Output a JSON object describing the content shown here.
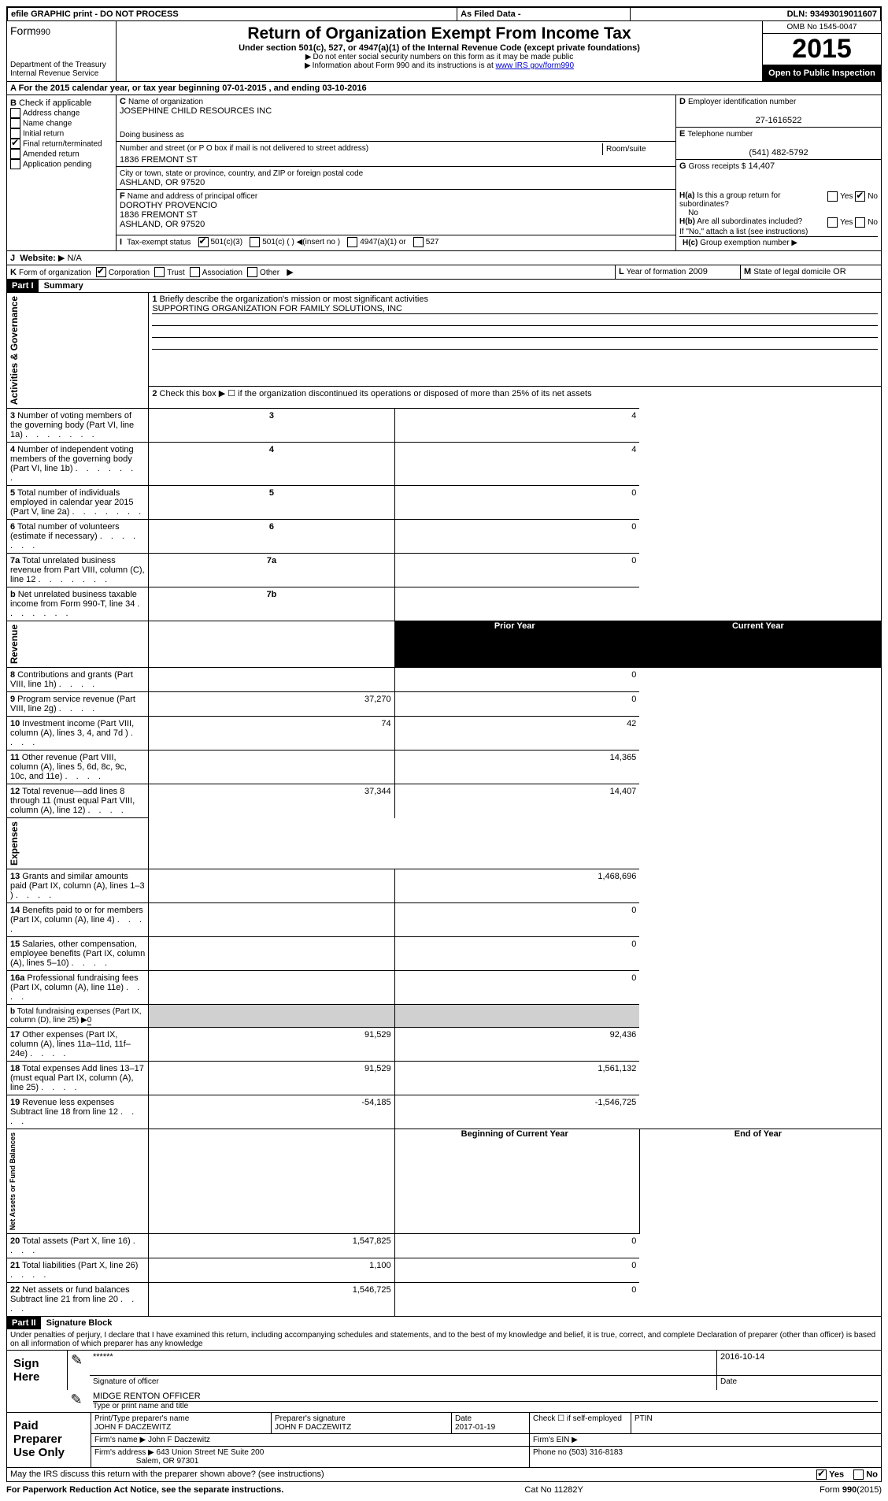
{
  "topbar": {
    "efile": "efile GRAPHIC print - DO NOT PROCESS",
    "asfiled": "As Filed Data -",
    "dln_label": "DLN:",
    "dln": "93493019011607"
  },
  "header": {
    "form_label": "Form",
    "form_no": "990",
    "dept": "Department of the Treasury",
    "irs": "Internal Revenue Service",
    "title": "Return of Organization Exempt From Income Tax",
    "subtitle": "Under section 501(c), 527, or 4947(a)(1) of the Internal Revenue Code (except private foundations)",
    "note1": "Do not enter social security numbers on this form as it may be made public",
    "note2": "Information about Form 990 and its instructions is at ",
    "note2_link": "www IRS gov/form990",
    "omb": "OMB No 1545-0047",
    "year": "2015",
    "inspect": "Open to Public Inspection"
  },
  "A": {
    "text": "For the 2015 calendar year, or tax year beginning 07-01-2015   , and ending 03-10-2016"
  },
  "B": {
    "label": "Check if applicable",
    "items": [
      {
        "label": "Address change",
        "checked": false
      },
      {
        "label": "Name change",
        "checked": false
      },
      {
        "label": "Initial return",
        "checked": false
      },
      {
        "label": "Final return/terminated",
        "checked": true
      },
      {
        "label": "Amended return",
        "checked": false
      },
      {
        "label": "Application pending",
        "checked": false
      }
    ]
  },
  "C": {
    "name_label": "Name of organization",
    "name": "JOSEPHINE CHILD RESOURCES INC",
    "dba_label": "Doing business as",
    "dba": "",
    "addr_label": "Number and street (or P O box if mail is not delivered to street address)",
    "room": "Room/suite",
    "addr": "1836 FREMONT ST",
    "city_label": "City or town, state or province, country, and ZIP or foreign postal code",
    "city": "ASHLAND, OR  97520"
  },
  "D": {
    "label": "Employer identification number",
    "value": "27-1616522"
  },
  "E": {
    "label": "Telephone number",
    "value": "(541) 482-5792"
  },
  "G": {
    "label": "Gross receipts $",
    "value": "14,407"
  },
  "F": {
    "label": "Name and address of principal officer",
    "name": "DOROTHY PROVENCIO",
    "addr": "1836 FREMONT ST",
    "city": "ASHLAND, OR  97520"
  },
  "H": {
    "a_label": "Is this a group return for subordinates?",
    "a_yes": "Yes",
    "a_no": "No",
    "a_no_checked": true,
    "b_label": "Are all subordinates included?",
    "b_note": "If \"No,\" attach a list (see instructions)",
    "c_label": "Group exemption number"
  },
  "I": {
    "label": "Tax-exempt status",
    "opts": [
      "501(c)(3)",
      "501(c) ( ) ◀(insert no )",
      "4947(a)(1) or",
      "527"
    ],
    "checked_idx": 0
  },
  "J": {
    "label": "Website:",
    "value": "N/A"
  },
  "K": {
    "label": "Form of organization",
    "opts": [
      "Corporation",
      "Trust",
      "Association",
      "Other"
    ],
    "checked_idx": 0
  },
  "L": {
    "label": "Year of formation",
    "value": "2009"
  },
  "M": {
    "label": "State of legal domicile",
    "value": "OR"
  },
  "partI": {
    "header": "Part I",
    "title": "Summary",
    "line1_label": "Briefly describe the organization's mission or most significant activities",
    "line1_value": "SUPPORTING ORGANIZATION FOR FAMILY SOLUTIONS, INC",
    "line2": "Check this box ▶ ☐ if the organization discontinued its operations or disposed of more than 25% of its net assets",
    "sections": {
      "gov": "Activities & Governance",
      "rev": "Revenue",
      "exp": "Expenses",
      "net": "Net Assets or Fund Balances"
    },
    "gov_rows": [
      {
        "n": "3",
        "t": "Number of voting members of the governing body (Part VI, line 1a)",
        "box": "3",
        "v": "4"
      },
      {
        "n": "4",
        "t": "Number of independent voting members of the governing body (Part VI, line 1b)",
        "box": "4",
        "v": "4"
      },
      {
        "n": "5",
        "t": "Total number of individuals employed in calendar year 2015 (Part V, line 2a)",
        "box": "5",
        "v": "0"
      },
      {
        "n": "6",
        "t": "Total number of volunteers (estimate if necessary)",
        "box": "6",
        "v": "0"
      },
      {
        "n": "7a",
        "t": "Total unrelated business revenue from Part VIII, column (C), line 12",
        "box": "7a",
        "v": "0"
      },
      {
        "n": "b",
        "t": "Net unrelated business taxable income from Form 990-T, line 34",
        "box": "7b",
        "v": ""
      }
    ],
    "col_prior": "Prior Year",
    "col_current": "Current Year",
    "rev_rows": [
      {
        "n": "8",
        "t": "Contributions and grants (Part VIII, line 1h)",
        "p": "",
        "c": "0"
      },
      {
        "n": "9",
        "t": "Program service revenue (Part VIII, line 2g)",
        "p": "37,270",
        "c": "0"
      },
      {
        "n": "10",
        "t": "Investment income (Part VIII, column (A), lines 3, 4, and 7d )",
        "p": "74",
        "c": "42"
      },
      {
        "n": "11",
        "t": "Other revenue (Part VIII, column (A), lines 5, 6d, 8c, 9c, 10c, and 11e)",
        "p": "",
        "c": "14,365"
      },
      {
        "n": "12",
        "t": "Total revenue—add lines 8 through 11 (must equal Part VIII, column (A), line 12)",
        "p": "37,344",
        "c": "14,407"
      }
    ],
    "exp_rows": [
      {
        "n": "13",
        "t": "Grants and similar amounts paid (Part IX, column (A), lines 1–3 )",
        "p": "",
        "c": "1,468,696"
      },
      {
        "n": "14",
        "t": "Benefits paid to or for members (Part IX, column (A), line 4)",
        "p": "",
        "c": "0"
      },
      {
        "n": "15",
        "t": "Salaries, other compensation, employee benefits (Part IX, column (A), lines 5–10)",
        "p": "",
        "c": "0"
      },
      {
        "n": "16a",
        "t": "Professional fundraising fees (Part IX, column (A), line 11e)",
        "p": "",
        "c": "0"
      },
      {
        "n": "b",
        "t": "Total fundraising expenses (Part IX, column (D), line 25) ▶",
        "p": null,
        "c": null,
        "inline": "0"
      },
      {
        "n": "17",
        "t": "Other expenses (Part IX, column (A), lines 11a–11d, 11f–24e)",
        "p": "91,529",
        "c": "92,436"
      },
      {
        "n": "18",
        "t": "Total expenses Add lines 13–17 (must equal Part IX, column (A), line 25)",
        "p": "91,529",
        "c": "1,561,132"
      },
      {
        "n": "19",
        "t": "Revenue less expenses Subtract line 18 from line 12",
        "p": "-54,185",
        "c": "-1,546,725"
      }
    ],
    "bal_header_p": "Beginning of Current Year",
    "bal_header_c": "End of Year",
    "bal_rows": [
      {
        "n": "20",
        "t": "Total assets (Part X, line 16)",
        "p": "1,547,825",
        "c": "0"
      },
      {
        "n": "21",
        "t": "Total liabilities (Part X, line 26)",
        "p": "1,100",
        "c": "0"
      },
      {
        "n": "22",
        "t": "Net assets or fund balances Subtract line 21 from line 20",
        "p": "1,546,725",
        "c": "0"
      }
    ]
  },
  "partII": {
    "header": "Part II",
    "title": "Signature Block",
    "perjury": "Under penalties of perjury, I declare that I have examined this return, including accompanying schedules and statements, and to the best of my knowledge and belief, it is true, correct, and complete Declaration of preparer (other than officer) is based on all information of which preparer has any knowledge",
    "sign_here": "Sign Here",
    "sig_stars": "******",
    "sig_officer": "Signature of officer",
    "sig_date": "2016-10-14",
    "date_label": "Date",
    "officer_name": "MIDGE RENTON OFFICER",
    "type_label": "Type or print name and title",
    "paid": "Paid Preparer Use Only",
    "prep_name_label": "Print/Type preparer's name",
    "prep_name": "JOHN F DACZEWITZ",
    "prep_sig_label": "Preparer's signature",
    "prep_sig": "JOHN F DACZEWITZ",
    "prep_date_label": "Date",
    "prep_date": "2017-01-19",
    "self_emp": "Check ☐ if self-employed",
    "ptin": "PTIN",
    "firm_name_label": "Firm's name   ▶",
    "firm_name": "John F Daczewitz",
    "firm_ein": "Firm's EIN ▶",
    "firm_addr_label": "Firm's address ▶",
    "firm_addr": "643 Union Street NE Suite 200",
    "firm_city": "Salem, OR  97301",
    "phone_label": "Phone no",
    "phone": "(503) 316-8183",
    "discuss": "May the IRS discuss this return with the preparer shown above? (see instructions)",
    "discuss_yes": "Yes",
    "discuss_no": "No"
  },
  "footer": {
    "pra": "For Paperwork Reduction Act Notice, see the separate instructions.",
    "cat": "Cat No 11282Y",
    "form": "Form",
    "formno": "990",
    "formyr": "(2015)"
  }
}
